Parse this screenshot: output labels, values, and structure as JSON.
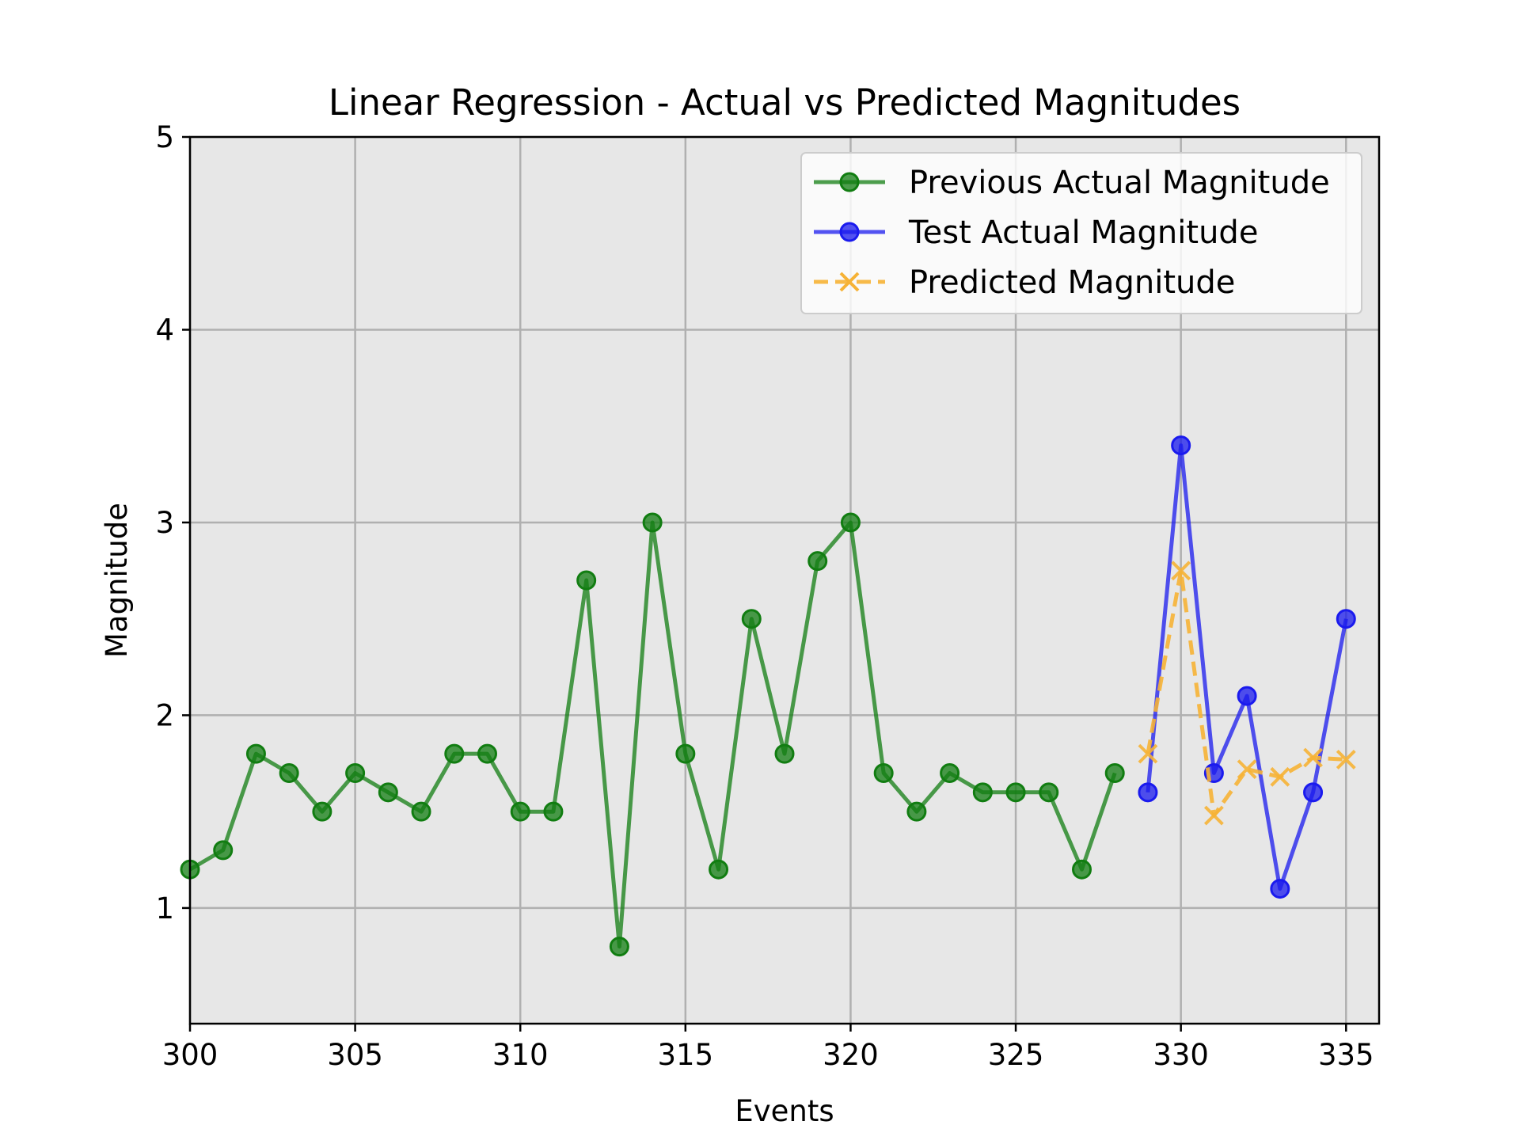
{
  "chart_data": {
    "type": "line",
    "title": "Linear Regression - Actual vs Predicted Magnitudes",
    "xlabel": "Events",
    "ylabel": "Magnitude",
    "xlim": [
      300,
      336
    ],
    "ylim": [
      0.4,
      5
    ],
    "x_ticks": [
      "300",
      "305",
      "310",
      "315",
      "320",
      "325",
      "330",
      "335"
    ],
    "y_ticks": [
      "1",
      "2",
      "3",
      "4",
      "5"
    ],
    "grid": true,
    "legend_position": "top-right",
    "background_color": "#e7e7e7",
    "series": [
      {
        "name": "Previous Actual Magnitude",
        "color": "#117d11",
        "marker": "circle",
        "line_style": "solid",
        "x": [
          300,
          301,
          302,
          303,
          304,
          305,
          306,
          307,
          308,
          309,
          310,
          311,
          312,
          313,
          314,
          315,
          316,
          317,
          318,
          319,
          320,
          321,
          322,
          323,
          324,
          325,
          326,
          327,
          328
        ],
        "values": [
          1.2,
          1.3,
          1.8,
          1.7,
          1.5,
          1.7,
          1.6,
          1.5,
          1.8,
          1.8,
          1.5,
          1.5,
          2.7,
          0.8,
          3.0,
          1.8,
          1.2,
          2.5,
          1.8,
          2.8,
          3.0,
          1.7,
          1.5,
          1.7,
          1.6,
          1.6,
          1.6,
          1.2,
          1.7
        ]
      },
      {
        "name": "Test Actual Magnitude",
        "color": "#1a1aee",
        "marker": "circle",
        "line_style": "solid",
        "x": [
          329,
          330,
          331,
          332,
          333,
          334,
          335
        ],
        "values": [
          1.6,
          3.4,
          1.7,
          2.1,
          1.1,
          1.6,
          2.5
        ]
      },
      {
        "name": "Predicted Magnitude",
        "color": "#f6b235",
        "marker": "x",
        "line_style": "dashed",
        "x": [
          329,
          330,
          331,
          332,
          333,
          334,
          335
        ],
        "values": [
          1.8,
          2.75,
          1.48,
          1.72,
          1.68,
          1.78,
          1.77
        ]
      }
    ]
  }
}
